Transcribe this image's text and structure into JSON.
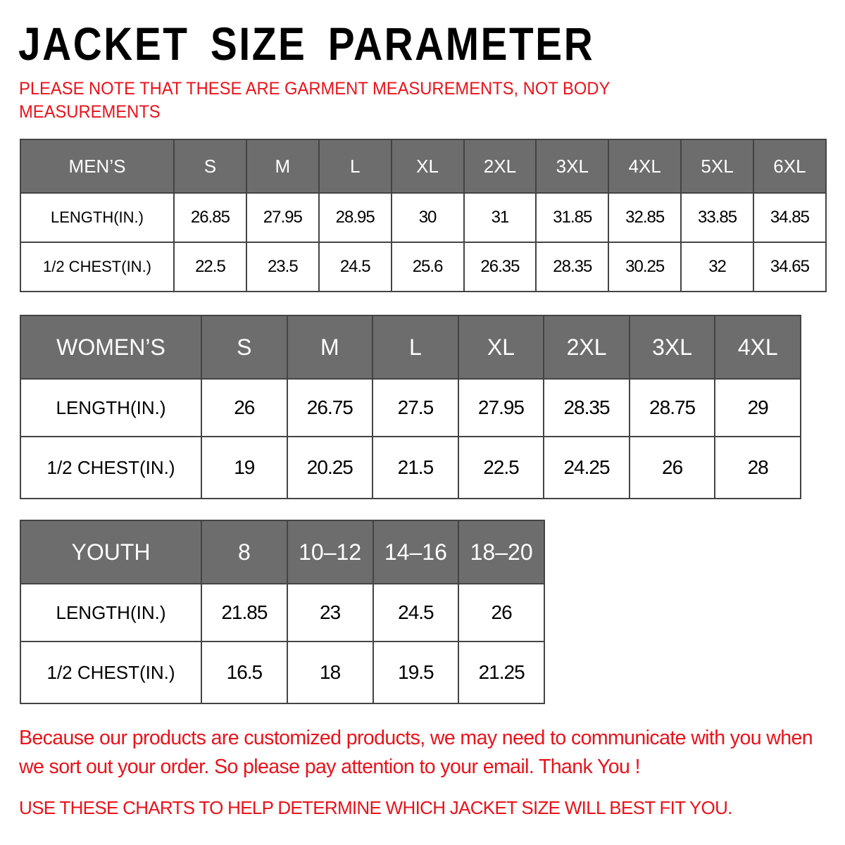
{
  "title": "JACKET SIZE PARAMETER",
  "note": "PLEASE NOTE THAT THESE ARE GARMENT MEASUREMENTS, NOT BODY MEASUREMENTS",
  "colors": {
    "header_bg": "#6d6d6d",
    "accent_red": "#e8131b"
  },
  "tables": {
    "men": {
      "header": [
        "MEN’S",
        "S",
        "M",
        "L",
        "XL",
        "2XL",
        "3XL",
        "4XL",
        "5XL",
        "6XL"
      ],
      "rows": [
        [
          "LENGTH(IN.)",
          "26.85",
          "27.95",
          "28.95",
          "30",
          "31",
          "31.85",
          "32.85",
          "33.85",
          "34.85"
        ],
        [
          "1/2 CHEST(IN.)",
          "22.5",
          "23.5",
          "24.5",
          "25.6",
          "26.35",
          "28.35",
          "30.25",
          "32",
          "34.65"
        ]
      ]
    },
    "women": {
      "header": [
        "WOMEN’S",
        "S",
        "M",
        "L",
        "XL",
        "2XL",
        "3XL",
        "4XL"
      ],
      "rows": [
        [
          "LENGTH(IN.)",
          "26",
          "26.75",
          "27.5",
          "27.95",
          "28.35",
          "28.75",
          "29"
        ],
        [
          "1/2 CHEST(IN.)",
          "19",
          "20.25",
          "21.5",
          "22.5",
          "24.25",
          "26",
          "28"
        ]
      ]
    },
    "youth": {
      "header": [
        "YOUTH",
        "8",
        "10–12",
        "14–16",
        "18–20"
      ],
      "rows": [
        [
          "LENGTH(IN.)",
          "21.85",
          "23",
          "24.5",
          "26"
        ],
        [
          "1/2 CHEST(IN.)",
          "16.5",
          "18",
          "19.5",
          "21.25"
        ]
      ]
    }
  },
  "message": "Because our products are customized products, we may need to communicate with you when we sort out your order. So please pay attention to your email. Thank You !",
  "footer": "USE THESE CHARTS TO HELP DETERMINE WHICH JACKET SIZE WILL BEST FIT YOU."
}
